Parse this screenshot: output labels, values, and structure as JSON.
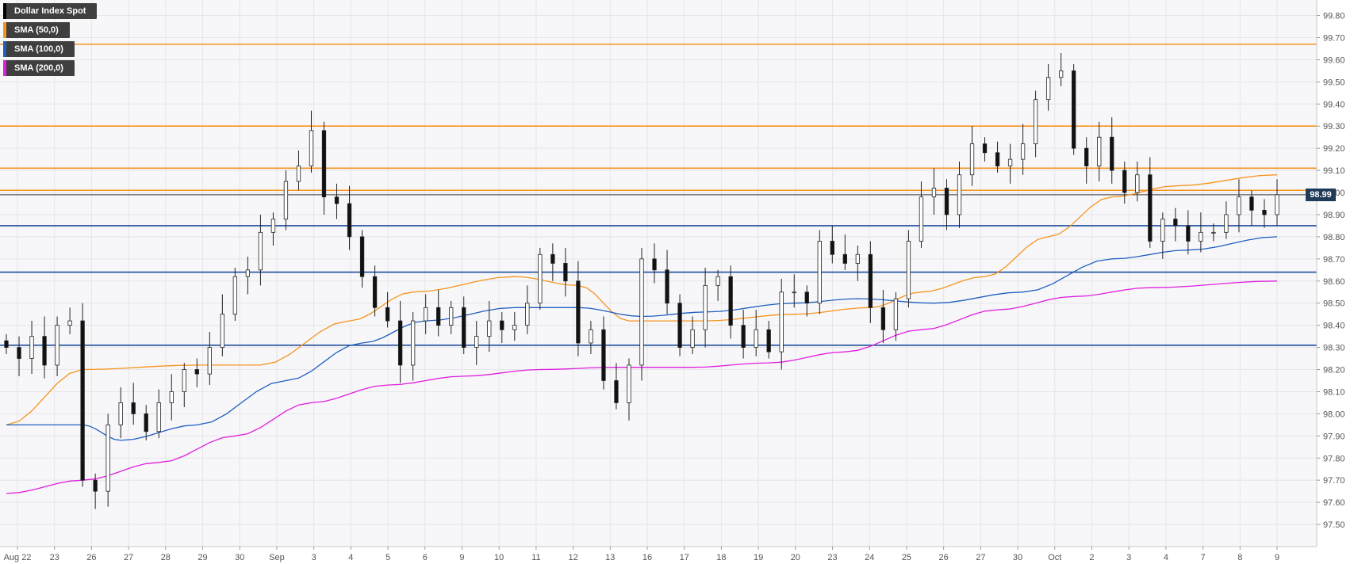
{
  "chart_data": {
    "type": "candlestick",
    "instrument": "Dollar Index Spot",
    "ylim": [
      97.4,
      99.87
    ],
    "y_ticks": [
      "99.80",
      "99.70",
      "99.60",
      "99.50",
      "99.40",
      "99.30",
      "99.20",
      "99.10",
      "99.00",
      "98.90",
      "98.80",
      "98.70",
      "98.60",
      "98.50",
      "98.40",
      "98.30",
      "98.20",
      "98.10",
      "98.00",
      "97.90",
      "97.80",
      "97.70",
      "97.60",
      "97.50"
    ],
    "x_tick_labels": [
      "Aug 22",
      "23",
      "26",
      "27",
      "28",
      "29",
      "30",
      "Sep",
      "3",
      "4",
      "5",
      "6",
      "9",
      "10",
      "11",
      "12",
      "13",
      "16",
      "17",
      "18",
      "19",
      "20",
      "23",
      "24",
      "25",
      "26",
      "27",
      "30",
      "Oct",
      "2",
      "3",
      "4",
      "7",
      "8",
      "9"
    ],
    "last_price": "98.99",
    "grid": true,
    "legend": [
      {
        "name": "Dollar Index Spot",
        "color": "#000000"
      },
      {
        "name": "SMA (50,0)",
        "color": "#f7931e"
      },
      {
        "name": "SMA (100,0)",
        "color": "#1f5fbf"
      },
      {
        "name": "SMA (200,0)",
        "color": "#e01ee0"
      }
    ],
    "resistance_levels": [
      99.67,
      99.3,
      99.11,
      99.01
    ],
    "support_levels": [
      98.85,
      98.64,
      98.31
    ],
    "level_colors": {
      "resistance": "#f7931e",
      "support": "#1f4e9c"
    },
    "candle_anchor_closes": [
      [
        0,
        98.3
      ],
      [
        1,
        98.25
      ],
      [
        2,
        98.35
      ],
      [
        3,
        98.22
      ],
      [
        4,
        98.4
      ],
      [
        5,
        98.42
      ],
      [
        6,
        97.7
      ],
      [
        7,
        97.65
      ],
      [
        8,
        97.95
      ],
      [
        9,
        98.05
      ],
      [
        10,
        98.0
      ],
      [
        11,
        97.92
      ],
      [
        12,
        98.05
      ],
      [
        13,
        98.1
      ],
      [
        14,
        98.2
      ],
      [
        15,
        98.18
      ],
      [
        16,
        98.3
      ],
      [
        17,
        98.45
      ],
      [
        18,
        98.62
      ],
      [
        19,
        98.65
      ],
      [
        20,
        98.82
      ],
      [
        21,
        98.88
      ],
      [
        22,
        99.05
      ],
      [
        23,
        99.12
      ],
      [
        24,
        99.28
      ],
      [
        25,
        98.98
      ],
      [
        26,
        98.95
      ],
      [
        27,
        98.8
      ],
      [
        28,
        98.62
      ],
      [
        29,
        98.48
      ],
      [
        30,
        98.42
      ],
      [
        31,
        98.22
      ],
      [
        32,
        98.42
      ],
      [
        33,
        98.48
      ],
      [
        34,
        98.4
      ],
      [
        35,
        98.48
      ],
      [
        36,
        98.3
      ],
      [
        37,
        98.35
      ],
      [
        38,
        98.42
      ],
      [
        39,
        98.38
      ],
      [
        40,
        98.4
      ],
      [
        41,
        98.5
      ],
      [
        42,
        98.72
      ],
      [
        43,
        98.68
      ],
      [
        44,
        98.6
      ],
      [
        45,
        98.32
      ],
      [
        46,
        98.38
      ],
      [
        47,
        98.15
      ],
      [
        48,
        98.05
      ],
      [
        49,
        98.22
      ],
      [
        50,
        98.7
      ],
      [
        51,
        98.65
      ],
      [
        52,
        98.5
      ],
      [
        53,
        98.3
      ],
      [
        54,
        98.38
      ],
      [
        55,
        98.58
      ],
      [
        56,
        98.62
      ],
      [
        57,
        98.4
      ],
      [
        58,
        98.3
      ],
      [
        59,
        98.38
      ],
      [
        60,
        98.28
      ],
      [
        61,
        98.55
      ],
      [
        62,
        98.55
      ],
      [
        63,
        98.5
      ],
      [
        64,
        98.78
      ],
      [
        65,
        98.72
      ],
      [
        66,
        98.68
      ],
      [
        67,
        98.72
      ],
      [
        68,
        98.48
      ],
      [
        69,
        98.38
      ],
      [
        70,
        98.52
      ],
      [
        71,
        98.78
      ],
      [
        72,
        98.98
      ],
      [
        73,
        99.02
      ],
      [
        74,
        98.9
      ],
      [
        75,
        99.08
      ],
      [
        76,
        99.22
      ],
      [
        77,
        99.18
      ],
      [
        78,
        99.12
      ],
      [
        79,
        99.15
      ],
      [
        80,
        99.22
      ],
      [
        81,
        99.42
      ],
      [
        82,
        99.52
      ],
      [
        83,
        99.55
      ],
      [
        84,
        99.2
      ],
      [
        85,
        99.12
      ],
      [
        86,
        99.25
      ],
      [
        87,
        99.1
      ],
      [
        88,
        99.0
      ],
      [
        89,
        99.08
      ],
      [
        90,
        98.78
      ],
      [
        91,
        98.88
      ],
      [
        92,
        98.85
      ],
      [
        93,
        98.78
      ],
      [
        94,
        98.82
      ],
      [
        95,
        98.82
      ],
      [
        96,
        98.9
      ],
      [
        97,
        98.98
      ],
      [
        98,
        98.92
      ],
      [
        99,
        98.9
      ],
      [
        100,
        98.99
      ]
    ],
    "sma_50_anchors": [
      [
        0,
        97.95
      ],
      [
        6,
        98.2
      ],
      [
        15,
        98.22
      ],
      [
        20,
        98.22
      ],
      [
        27,
        98.42
      ],
      [
        32,
        98.55
      ],
      [
        40,
        98.62
      ],
      [
        45,
        98.58
      ],
      [
        49,
        98.42
      ],
      [
        55,
        98.42
      ],
      [
        62,
        98.45
      ],
      [
        68,
        98.48
      ],
      [
        72,
        98.55
      ],
      [
        77,
        98.62
      ],
      [
        82,
        98.8
      ],
      [
        87,
        98.98
      ],
      [
        92,
        99.03
      ],
      [
        100,
        99.08
      ]
    ],
    "sma_100_anchors": [
      [
        0,
        97.95
      ],
      [
        6,
        97.95
      ],
      [
        9,
        97.88
      ],
      [
        15,
        97.95
      ],
      [
        22,
        98.15
      ],
      [
        28,
        98.32
      ],
      [
        33,
        98.42
      ],
      [
        40,
        98.48
      ],
      [
        45,
        98.48
      ],
      [
        50,
        98.44
      ],
      [
        55,
        98.46
      ],
      [
        62,
        98.5
      ],
      [
        67,
        98.52
      ],
      [
        73,
        98.5
      ],
      [
        80,
        98.55
      ],
      [
        87,
        98.7
      ],
      [
        93,
        98.74
      ],
      [
        100,
        98.8
      ]
    ],
    "sma_200_anchors": [
      [
        0,
        97.64
      ],
      [
        6,
        97.7
      ],
      [
        12,
        97.78
      ],
      [
        18,
        97.9
      ],
      [
        24,
        98.05
      ],
      [
        30,
        98.13
      ],
      [
        36,
        98.17
      ],
      [
        42,
        98.2
      ],
      [
        48,
        98.21
      ],
      [
        54,
        98.21
      ],
      [
        60,
        98.23
      ],
      [
        66,
        98.28
      ],
      [
        72,
        98.38
      ],
      [
        78,
        98.47
      ],
      [
        84,
        98.53
      ],
      [
        90,
        98.57
      ],
      [
        100,
        98.6
      ]
    ]
  }
}
